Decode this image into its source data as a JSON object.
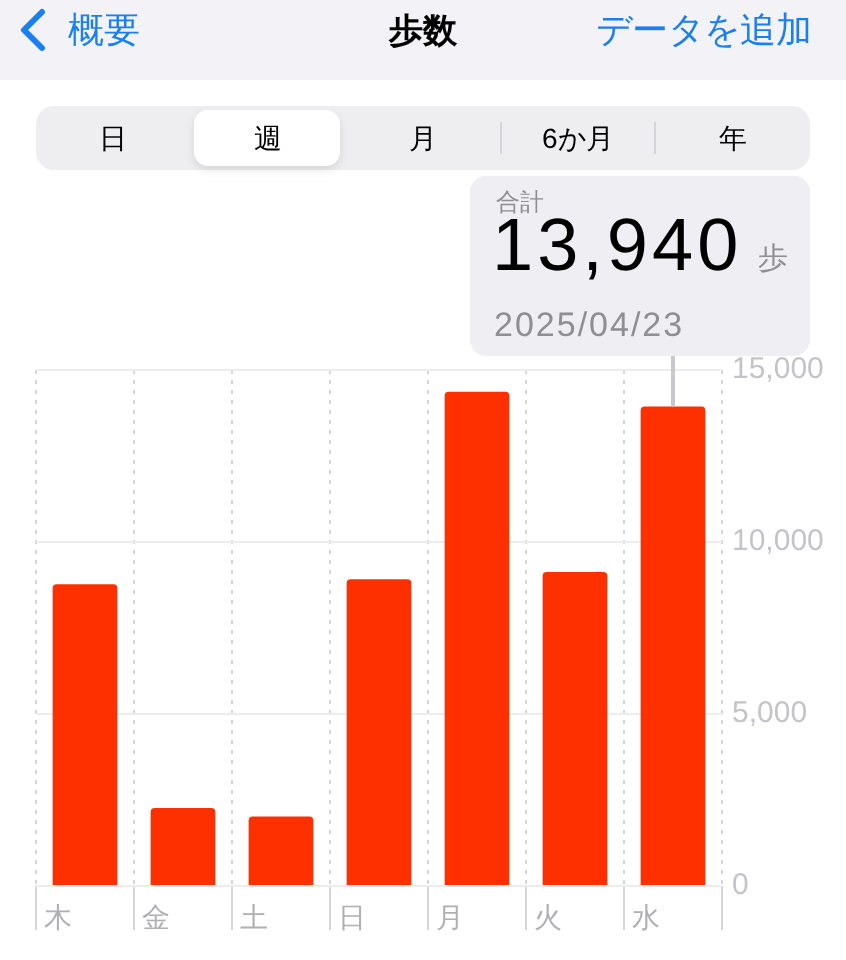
{
  "chart_data": {
    "type": "bar",
    "title": "歩数",
    "categories": [
      "木",
      "金",
      "土",
      "日",
      "月",
      "火",
      "水"
    ],
    "values": [
      8770,
      2270,
      2020,
      8920,
      14370,
      9130,
      13940
    ],
    "color": "#ff3000",
    "ylim": [
      0,
      15000
    ],
    "yticks": [
      0,
      {
        "value": 5000,
        "label": "5,000"
      },
      {
        "value": 10000,
        "label": "10,000"
      },
      {
        "value": 15000,
        "label": "15,000"
      }
    ],
    "grid": true,
    "annotations": [
      "概要",
      "データを追加",
      "日",
      "週",
      "月",
      "6か月",
      "年",
      "合計",
      {
        "text": "13,940",
        "x": "水",
        "y": 13940
      },
      "歩",
      "2025/04/23"
    ]
  }
}
